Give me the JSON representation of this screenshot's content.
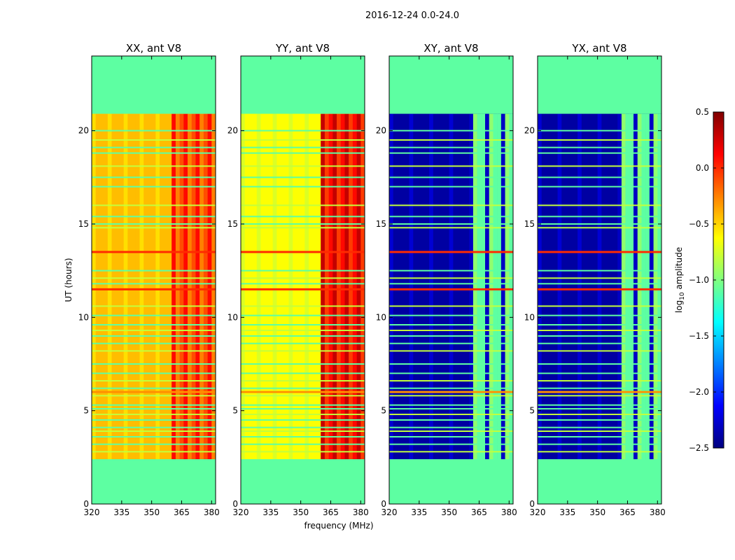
{
  "figure_title": "2016-12-24 0.0-24.0",
  "chart_data": {
    "type": "heatmap",
    "title": "2016-12-24 0.0-24.0",
    "xlabel": "frequency (MHz)",
    "ylabel": "UT (hours)",
    "colorbar_label": "log10 amplitude",
    "colorbar_label_parts": {
      "prefix": "log",
      "sub": "10",
      "suffix": " amplitude"
    },
    "colorbar_range": [
      -2.5,
      0.5
    ],
    "colorbar_ticks": [
      "0.5",
      "0.0",
      "−0.5",
      "−1.0",
      "−1.5",
      "−2.0",
      "−2.5"
    ],
    "colormap": "jet",
    "xlim": [
      320,
      382
    ],
    "ylim": [
      0,
      24
    ],
    "xticks": [
      "320",
      "335",
      "350",
      "365",
      "380"
    ],
    "yticks": [
      "0",
      "5",
      "10",
      "15",
      "20"
    ],
    "data_time_range": [
      2.4,
      20.9
    ],
    "fill_value": -1.1,
    "rfi_band_mhz": [
      360,
      382
    ],
    "flagged_hours": [
      2.8,
      3.2,
      3.6,
      3.9,
      4.1,
      4.5,
      4.8,
      5.1,
      5.3,
      5.8,
      6.0,
      6.2,
      6.6,
      7.0,
      7.5,
      8.2,
      8.6,
      9.0,
      9.3,
      9.6,
      10.1,
      10.6,
      11.5,
      11.8,
      12.1,
      12.5,
      13.5,
      14.8,
      15.0,
      15.4,
      16.0,
      17.0,
      17.5,
      18.1,
      18.8,
      19.1,
      19.5,
      20.0
    ],
    "strong_flags": [
      {
        "hour": 13.5,
        "value": 0.0
      },
      {
        "hour": 11.5,
        "value": 0.0
      },
      {
        "hour": 6.0,
        "value": -0.3
      }
    ],
    "panels": [
      {
        "title": "XX, ant V8",
        "kind": "auto",
        "base_value": -0.45,
        "rfi_value": -0.15
      },
      {
        "title": "YY, ant V8",
        "kind": "auto",
        "base_value": -0.65,
        "rfi_value": 0.05
      },
      {
        "title": "XY, ant V8",
        "kind": "cross",
        "base_value": -2.4,
        "rfi_value": -1.1
      },
      {
        "title": "YX, ant V8",
        "kind": "cross",
        "base_value": -2.4,
        "rfi_value": -1.1
      }
    ]
  }
}
